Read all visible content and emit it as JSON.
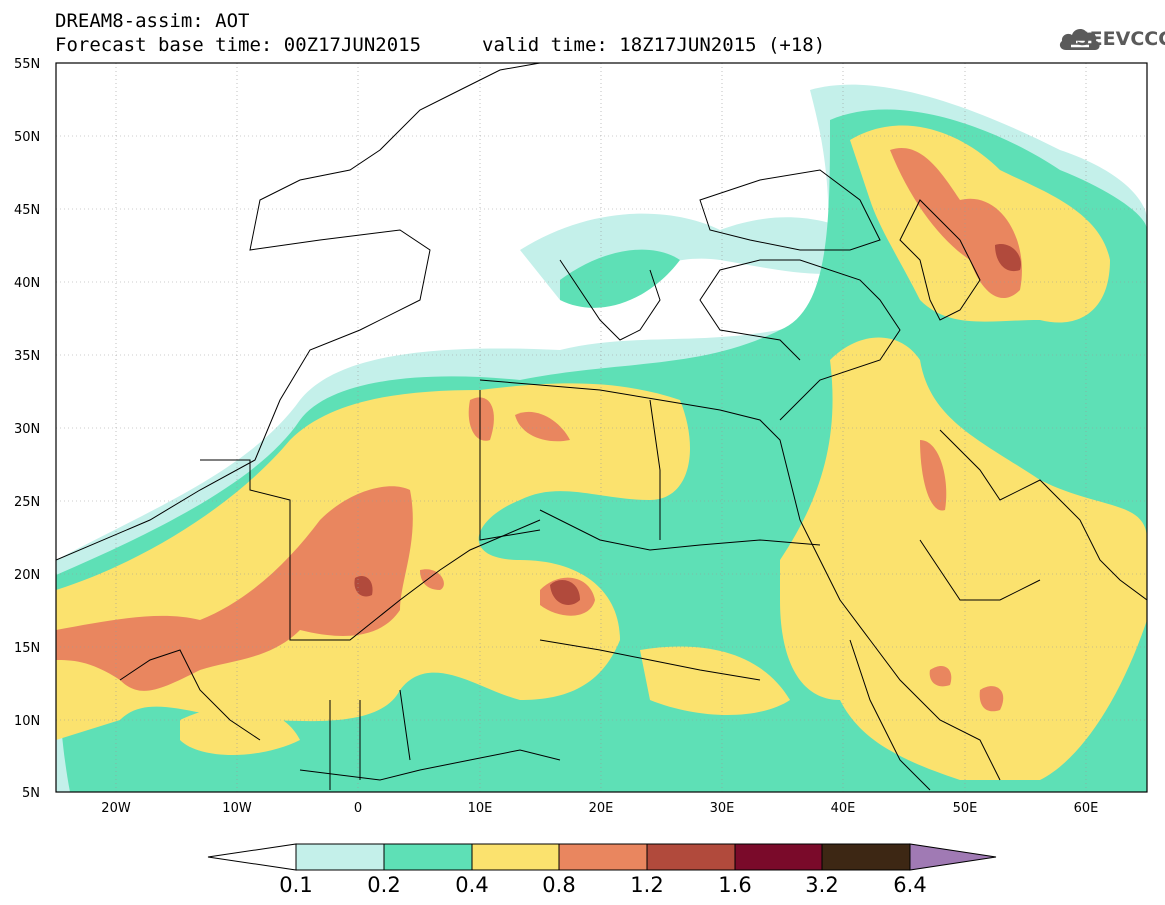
{
  "header": {
    "line1": "DREAM8-assim: AOT",
    "line2": "Forecast base time: 00Z17JUN2015",
    "line3": "valid time: 18Z17JUN2015 (+18)",
    "logo_text": "SEEVCCC",
    "logo_icon": "cloud-icon"
  },
  "map": {
    "lon_range": [
      -25,
      65
    ],
    "lat_range": [
      5,
      55
    ],
    "lat_ticks": [
      "55N",
      "50N",
      "45N",
      "40N",
      "35N",
      "30N",
      "25N",
      "20N",
      "15N",
      "10N",
      "5N"
    ],
    "lon_ticks": [
      "20W",
      "10W",
      "0",
      "10E",
      "20E",
      "30E",
      "40E",
      "50E",
      "60E"
    ],
    "grid": "dotted"
  },
  "colorbar": {
    "labels": [
      "0.1",
      "0.2",
      "0.4",
      "0.8",
      "1.2",
      "1.6",
      "3.2",
      "6.4"
    ],
    "colors": [
      "#ffffff",
      "#c4f0ea",
      "#5ee0b6",
      "#fbe26e",
      "#e9865f",
      "#b14a3c",
      "#7a0a2a",
      "#3d2714",
      "#a07ab4"
    ]
  },
  "colors": {
    "c1": "#c4f0ea",
    "c2": "#5ee0b6",
    "c3": "#fbe26e",
    "c4": "#e9865f",
    "c5": "#b14a3c"
  }
}
